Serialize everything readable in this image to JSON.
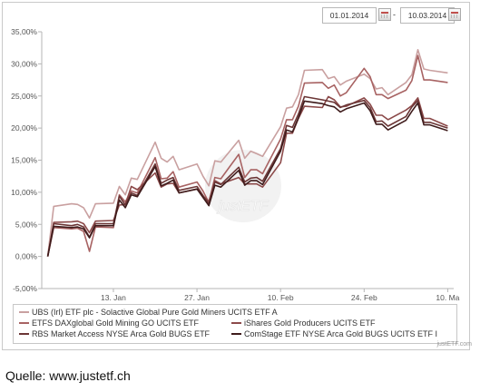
{
  "date_range": {
    "start": "01.01.2014",
    "separator": "-",
    "end": "10.03.2014"
  },
  "watermark": "justETF",
  "credit": "justETF.com",
  "source": "Quelle: www.justetf.ch",
  "chart_data": {
    "type": "line",
    "title": "",
    "xlabel": "",
    "ylabel": "",
    "ylim": [
      -5,
      35
    ],
    "y_ticks": [
      "-5,00%",
      "0,00%",
      "5,00%",
      "10,00%",
      "15,00%",
      "20,00%",
      "25,00%",
      "30,00%",
      "35,00%"
    ],
    "y_tick_values": [
      -5,
      0,
      5,
      10,
      15,
      20,
      25,
      30,
      35
    ],
    "x_tick_labels": [
      "13. Jan",
      "27. Jan",
      "10. Feb",
      "24. Feb",
      "10. Ma"
    ],
    "x_tick_dates": [
      "2014-01-13",
      "2014-01-27",
      "2014-02-10",
      "2014-02-24",
      "2014-03-10"
    ],
    "x": [
      "2014-01-02",
      "2014-01-03",
      "2014-01-06",
      "2014-01-07",
      "2014-01-08",
      "2014-01-09",
      "2014-01-10",
      "2014-01-13",
      "2014-01-14",
      "2014-01-15",
      "2014-01-16",
      "2014-01-17",
      "2014-01-20",
      "2014-01-21",
      "2014-01-22",
      "2014-01-23",
      "2014-01-24",
      "2014-01-27",
      "2014-01-28",
      "2014-01-29",
      "2014-01-30",
      "2014-01-31",
      "2014-02-03",
      "2014-02-04",
      "2014-02-05",
      "2014-02-06",
      "2014-02-07",
      "2014-02-10",
      "2014-02-11",
      "2014-02-12",
      "2014-02-13",
      "2014-02-14",
      "2014-02-17",
      "2014-02-18",
      "2014-02-19",
      "2014-02-20",
      "2014-02-21",
      "2014-02-24",
      "2014-02-25",
      "2014-02-26",
      "2014-02-27",
      "2014-02-28",
      "2014-03-03",
      "2014-03-04",
      "2014-03-05",
      "2014-03-06",
      "2014-03-07",
      "2014-03-10"
    ],
    "grid": false,
    "legend_position": "bottom",
    "series": [
      {
        "name": "UBS (Irl) ETF plc - Solactive Global Pure Gold Miners UCITS ETF A",
        "color": "#c9a0a0",
        "values": [
          0,
          7.8,
          8.2,
          8.1,
          7.6,
          6.0,
          8.2,
          8.3,
          10.9,
          9.6,
          12.2,
          12.0,
          17.8,
          15.3,
          14.7,
          15.6,
          13.5,
          14.4,
          12.5,
          11.0,
          14.9,
          14.7,
          18.1,
          15.3,
          16.4,
          16.0,
          15.6,
          20.2,
          23.1,
          23.3,
          25.2,
          29.0,
          29.1,
          27.7,
          28.0,
          26.7,
          27.3,
          28.4,
          27.7,
          26.1,
          26.3,
          25.2,
          27.1,
          28.3,
          32.2,
          29.2,
          29.0,
          28.6
        ]
      },
      {
        "name": "ETFS DAXglobal Gold Mining GO UCITS ETF",
        "color": "#a86363",
        "values": [
          0,
          4.5,
          4.3,
          4.4,
          3.9,
          0.8,
          4.6,
          4.5,
          9.6,
          8.5,
          10.2,
          9.9,
          15.4,
          12.1,
          12.2,
          13.2,
          10.8,
          11.6,
          10.2,
          8.4,
          12.3,
          12.1,
          15.9,
          12.3,
          13.5,
          13.5,
          12.9,
          18.3,
          21.3,
          21.3,
          23.4,
          27.0,
          27.1,
          26.2,
          26.7,
          25.0,
          25.5,
          29.3,
          28.0,
          25.2,
          25.2,
          24.6,
          25.9,
          27.4,
          31.3,
          27.5,
          27.5,
          27.1
        ]
      },
      {
        "name": "iShares Gold Producers UCITS ETF",
        "color": "#8c4a4a",
        "values": [
          0,
          5.3,
          5.4,
          5.5,
          5.1,
          3.7,
          5.5,
          5.6,
          8.0,
          8.1,
          10.9,
          10.4,
          13.0,
          10.8,
          11.3,
          11.4,
          9.9,
          10.5,
          9.4,
          8.6,
          11.8,
          11.3,
          12.3,
          11.3,
          11.3,
          11.3,
          10.8,
          14.6,
          19.2,
          19.2,
          21.5,
          23.4,
          23.2,
          24.9,
          24.4,
          23.3,
          23.4,
          24.7,
          23.7,
          22.0,
          22.0,
          21.3,
          22.8,
          23.5,
          24.7,
          21.5,
          21.5,
          20.3
        ]
      },
      {
        "name": "RBS Market Access NYSE Arca Gold BUGS ETF",
        "color": "#6b3636",
        "values": [
          0,
          5.1,
          4.8,
          5.0,
          4.6,
          3.0,
          5.1,
          5.1,
          9.4,
          8.0,
          9.9,
          9.5,
          14.4,
          11.4,
          11.9,
          12.3,
          10.3,
          10.9,
          9.5,
          8.2,
          11.6,
          11.2,
          13.9,
          11.6,
          12.2,
          12.3,
          11.7,
          16.8,
          20.4,
          20.1,
          22.2,
          24.9,
          24.4,
          24.2,
          24.0,
          23.2,
          23.6,
          24.3,
          23.2,
          21.0,
          21.1,
          20.3,
          21.8,
          23.3,
          24.3,
          20.9,
          20.9,
          20.0
        ]
      },
      {
        "name": "ComStage ETF NYSE Arca Gold BUGS UCITS ETF I",
        "color": "#3e1b1b",
        "values": [
          0,
          4.7,
          4.5,
          4.6,
          4.3,
          2.9,
          4.8,
          4.8,
          8.8,
          7.6,
          9.6,
          9.3,
          14.0,
          11.0,
          11.4,
          11.9,
          9.9,
          10.5,
          9.2,
          7.9,
          11.1,
          10.8,
          13.4,
          11.1,
          11.8,
          11.8,
          11.2,
          16.4,
          19.7,
          19.4,
          21.6,
          24.2,
          23.8,
          23.5,
          23.3,
          22.5,
          23.0,
          23.9,
          22.7,
          20.6,
          20.6,
          19.7,
          21.2,
          22.6,
          23.9,
          20.5,
          20.5,
          19.6
        ]
      }
    ]
  }
}
